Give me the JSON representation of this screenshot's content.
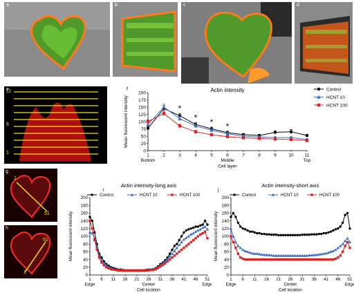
{
  "panels": {
    "a": "a",
    "b": "b",
    "c": "c",
    "d": "d",
    "e": "e",
    "f": "f",
    "g": "g",
    "h": "h",
    "i": "i",
    "j": "j"
  },
  "e_labels": [
    "11",
    "6",
    "1"
  ],
  "g_labels": {
    "start": "1",
    "end": "51"
  },
  "h_labels": {
    "start": "1",
    "end": "51"
  },
  "chart_data": [
    {
      "id": "f",
      "type": "line",
      "title": "Actin intensity",
      "xlabel": "Cell layer",
      "ylabel": "Mean fluorescent intensity",
      "x": [
        1,
        2,
        3,
        4,
        5,
        6,
        7,
        8,
        9,
        10,
        11
      ],
      "ylim": [
        0,
        200
      ],
      "yticks": [
        0,
        25,
        50,
        75,
        100,
        125,
        150,
        175,
        200
      ],
      "xticks": [
        1,
        2,
        3,
        4,
        5,
        6,
        7,
        8,
        9,
        10,
        11
      ],
      "xsub": {
        "Bottom": 1,
        "Middle": 6,
        "Top": 11
      },
      "legend_position": "top-right",
      "significance": [
        3,
        4,
        5,
        6
      ],
      "sig_mark": "*",
      "series": [
        {
          "name": "Control",
          "color": "#000000",
          "marker": "circle",
          "values": [
            77,
            145,
            120,
            90,
            75,
            62,
            55,
            52,
            63,
            65,
            52
          ],
          "err": [
            6,
            10,
            8,
            6,
            6,
            5,
            4,
            4,
            5,
            8,
            4
          ]
        },
        {
          "name": "HCNT 10",
          "color": "#3b6ecf",
          "marker": "triangle",
          "values": [
            90,
            150,
            110,
            85,
            70,
            58,
            50,
            47,
            45,
            45,
            38
          ],
          "err": [
            6,
            10,
            8,
            6,
            5,
            5,
            4,
            4,
            4,
            4,
            4
          ]
        },
        {
          "name": "HCNT 100",
          "color": "#e02020",
          "marker": "square",
          "values": [
            100,
            128,
            85,
            65,
            55,
            48,
            44,
            42,
            40,
            38,
            35
          ],
          "err": [
            6,
            8,
            6,
            5,
            4,
            4,
            4,
            4,
            4,
            4,
            4
          ]
        }
      ]
    },
    {
      "id": "i",
      "type": "line",
      "title": "Actin intensity-long axis",
      "xlabel": "Cell location",
      "ylabel": "Mean fluorescent intensity",
      "ylim": [
        0,
        200
      ],
      "yticks": [
        0,
        20,
        40,
        60,
        80,
        100,
        120,
        140,
        160,
        180,
        200
      ],
      "xticks": [
        1,
        6,
        11,
        16,
        21,
        26,
        31,
        36,
        41,
        46,
        51
      ],
      "xsub": {
        "Edge": 1,
        "Center": 26,
        "Edge ": 51
      },
      "legend_position": "top",
      "series": [
        {
          "name": "Control",
          "color": "#000000",
          "marker": "circle",
          "values": [
            150,
            140,
            110,
            80,
            55,
            45,
            35,
            28,
            24,
            20,
            18,
            16,
            14,
            14,
            13,
            12,
            12,
            12,
            12,
            12,
            12,
            12,
            12,
            12,
            13,
            14,
            14,
            15,
            18,
            22,
            28,
            32,
            38,
            45,
            55,
            65,
            75,
            80,
            90,
            100,
            110,
            115,
            118,
            120,
            122,
            125,
            125,
            128,
            130,
            140,
            130
          ]
        },
        {
          "name": "HCNT 10",
          "color": "#3b6ecf",
          "marker": "triangle",
          "values": [
            110,
            108,
            95,
            72,
            50,
            38,
            30,
            25,
            20,
            18,
            16,
            14,
            13,
            12,
            12,
            11,
            11,
            11,
            11,
            11,
            11,
            11,
            11,
            12,
            12,
            13,
            14,
            15,
            17,
            20,
            25,
            30,
            35,
            40,
            48,
            55,
            62,
            70,
            78,
            85,
            92,
            96,
            100,
            105,
            108,
            112,
            115,
            118,
            122,
            125,
            118
          ]
        },
        {
          "name": "HCNT 100",
          "color": "#e02020",
          "marker": "square",
          "values": [
            140,
            120,
            90,
            65,
            45,
            32,
            25,
            20,
            17,
            15,
            14,
            13,
            12,
            12,
            11,
            11,
            11,
            11,
            11,
            11,
            11,
            11,
            11,
            11,
            12,
            12,
            13,
            13,
            15,
            18,
            22,
            26,
            30,
            35,
            40,
            45,
            50,
            55,
            60,
            65,
            70,
            75,
            80,
            85,
            90,
            95,
            100,
            105,
            108,
            112,
            95
          ]
        }
      ]
    },
    {
      "id": "j",
      "type": "line",
      "title": "Actin intensity-short axis",
      "xlabel": "Cell location",
      "ylabel": "Mean fluorescent intensity",
      "ylim": [
        0,
        200
      ],
      "yticks": [
        0,
        20,
        40,
        60,
        80,
        100,
        120,
        140,
        160,
        180,
        200
      ],
      "xticks": [
        1,
        6,
        11,
        16,
        21,
        26,
        31,
        36,
        41,
        46,
        51
      ],
      "xsub": {
        "Edge": 1,
        "Center": 26,
        "Edge ": 51
      },
      "legend_position": "top",
      "series": [
        {
          "name": "Control",
          "color": "#000000",
          "marker": "circle",
          "values": [
            150,
            160,
            150,
            135,
            125,
            120,
            118,
            115,
            112,
            112,
            110,
            108,
            108,
            106,
            106,
            105,
            105,
            104,
            104,
            104,
            103,
            103,
            103,
            103,
            103,
            103,
            103,
            103,
            103,
            103,
            104,
            104,
            104,
            104,
            105,
            105,
            105,
            106,
            106,
            108,
            108,
            110,
            112,
            115,
            118,
            120,
            125,
            135,
            155,
            160,
            120
          ]
        },
        {
          "name": "HCNT 10",
          "color": "#3b6ecf",
          "marker": "triangle",
          "values": [
            120,
            100,
            85,
            75,
            70,
            65,
            62,
            60,
            58,
            56,
            55,
            55,
            54,
            53,
            52,
            52,
            52,
            51,
            50,
            50,
            50,
            50,
            50,
            50,
            50,
            50,
            50,
            50,
            50,
            50,
            50,
            50,
            50,
            51,
            51,
            52,
            52,
            53,
            54,
            55,
            56,
            58,
            60,
            62,
            65,
            70,
            75,
            80,
            88,
            95,
            85
          ]
        },
        {
          "name": "HCNT 100",
          "color": "#e02020",
          "marker": "square",
          "values": [
            100,
            85,
            70,
            55,
            45,
            42,
            40,
            40,
            40,
            40,
            40,
            40,
            40,
            40,
            40,
            40,
            40,
            40,
            40,
            40,
            40,
            40,
            40,
            40,
            40,
            40,
            40,
            40,
            40,
            40,
            40,
            40,
            40,
            40,
            40,
            40,
            40,
            40,
            40,
            40,
            40,
            40,
            40,
            40,
            42,
            45,
            50,
            60,
            75,
            85,
            70
          ]
        }
      ]
    }
  ]
}
